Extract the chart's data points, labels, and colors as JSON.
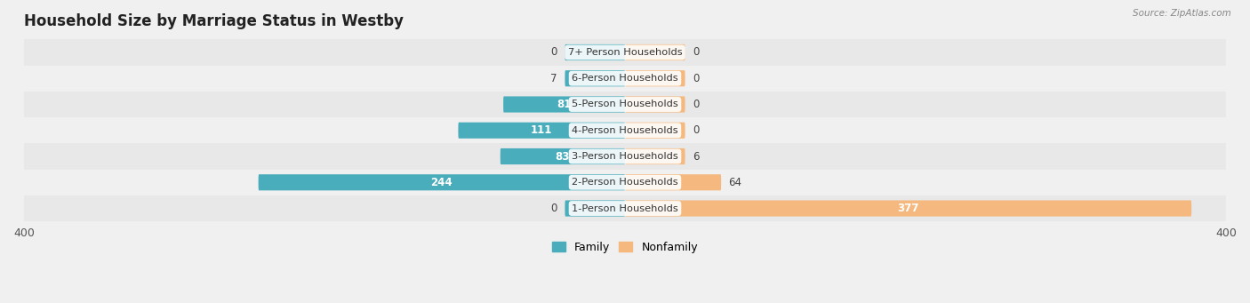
{
  "title": "Household Size by Marriage Status in Westby",
  "source": "Source: ZipAtlas.com",
  "categories": [
    "1-Person Households",
    "2-Person Households",
    "3-Person Households",
    "4-Person Households",
    "5-Person Households",
    "6-Person Households",
    "7+ Person Households"
  ],
  "family_values": [
    0,
    244,
    83,
    111,
    81,
    7,
    0
  ],
  "nonfamily_values": [
    377,
    64,
    6,
    0,
    0,
    0,
    0
  ],
  "family_color": "#4AADBB",
  "nonfamily_color": "#F5B97F",
  "bg_color": "#f0f0f0",
  "row_colors": [
    "#e8e8e8",
    "#f0f0f0",
    "#e8e8e8",
    "#f0f0f0",
    "#e8e8e8",
    "#f0f0f0",
    "#e8e8e8"
  ],
  "xlim": 400,
  "title_fontsize": 12,
  "bar_height": 0.62,
  "legend_family": "Family",
  "legend_nonfamily": "Nonfamily",
  "min_bar_width": 40
}
